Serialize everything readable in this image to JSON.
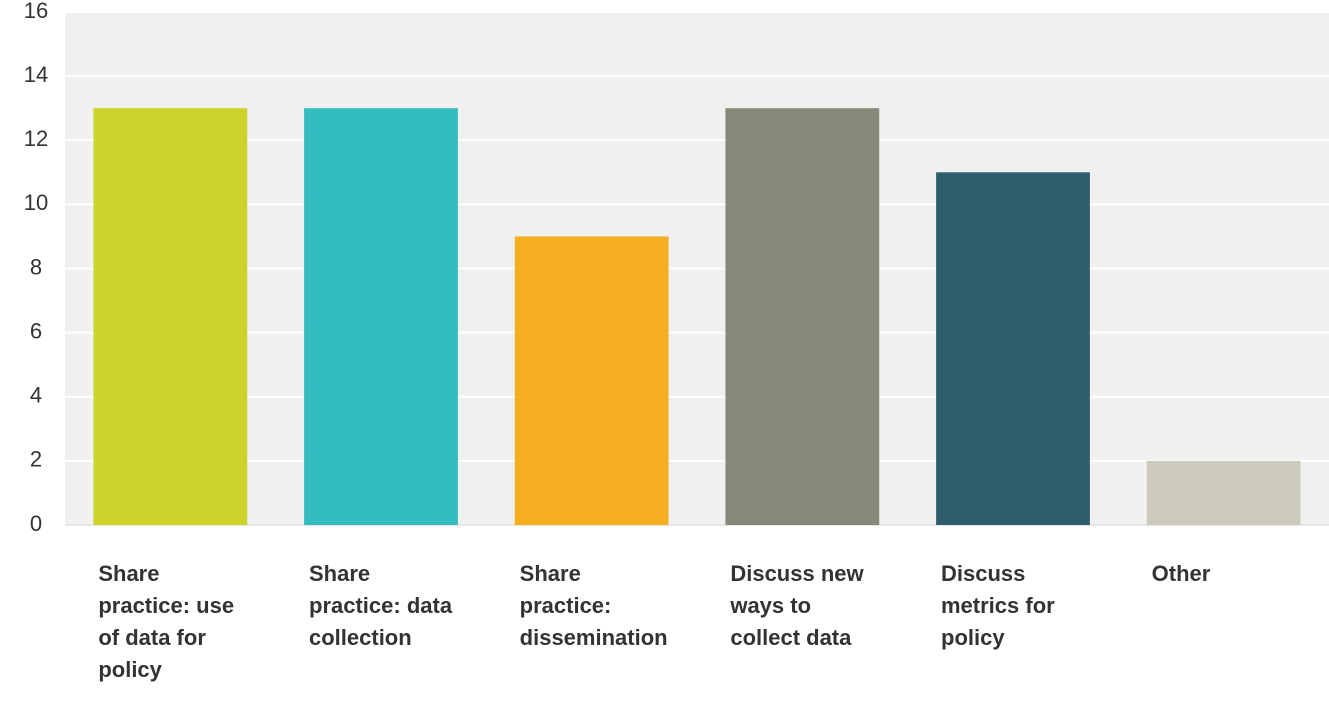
{
  "chart_data": {
    "type": "bar",
    "categories": [
      "Share practice: use of data for policy",
      "Share practice: data collection",
      "Share practice: dissemination",
      "Discuss new ways to collect data",
      "Discuss metrics for policy",
      "Other"
    ],
    "values": [
      13,
      13,
      9,
      13,
      11,
      2
    ],
    "colors": [
      "#ccd32a",
      "#33bdbf",
      "#f5ae1f",
      "#878877",
      "#2e5e6b",
      "#cccbbb"
    ],
    "ylim": [
      0,
      16
    ],
    "yticks": [
      0,
      2,
      4,
      6,
      8,
      10,
      12,
      14,
      16
    ],
    "grid": true
  }
}
